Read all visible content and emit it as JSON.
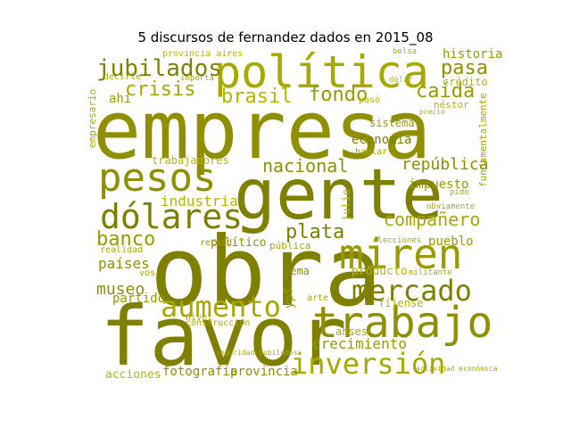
{
  "title": "5 discursos de fernandez dados en 2015_08",
  "words": {
    "empresa": "empresa",
    "obra": "obra",
    "favor": "favor",
    "gente": "gente",
    "politica": "política",
    "pesos": "pesos",
    "dolares": "dólares",
    "trabajo": "trabajo",
    "miren": "miren",
    "mercado": "mercado",
    "inversion": "inversión",
    "aumento": "aumento",
    "jubilados": "jubilados",
    "crisis": "crisis",
    "brasil": "brasil",
    "fondo": "fondo",
    "pasa": "pasa",
    "caida": "caída",
    "banco": "banco",
    "plata": "plata",
    "companero": "compañero",
    "nacional": "nacional",
    "republica": "república",
    "industria": "industria",
    "paises": "países",
    "museo": "museo",
    "partido": "partido",
    "crecimiento": "crecimiento",
    "economia": "economía",
    "historia": "historia",
    "credito": "crédito",
    "impuesto": "impuesto",
    "pueblo": "pueblo",
    "trabajadores": "trabajadores",
    "acciones": "acciones",
    "fotografia": "fotografía",
    "provincia": "provincia",
    "politico": "político",
    "publica": "pública",
    "record": "record",
    "producto": "producto",
    "anses": "anses",
    "lema": "lema",
    "ypf": "ypf",
    "fijense": "fíjense",
    "sistema": "sistema",
    "julio": "julio",
    "empresario": "empresario",
    "fundamentalmente": "fundamentalmente",
    "nestor": "néstor",
    "provincia_aires": "provincia aires",
    "decirle": "decirle",
    "importa": "importa",
    "realidad": "realidad",
    "nivel": "nivel",
    "construccion": "construcción",
    "ahi": "ahí",
    "hablar": "hablar",
    "elecciones": "elecciones",
    "militante": "militante",
    "obviamente": "obviamente",
    "seguridad_jubilados": "seguridad jubilados",
    "actividad_economica": "actividad económica",
    "paso": "pasó",
    "bolsa": "bolsa",
    "arte": "arte",
    "dolar": "dólar",
    "precio": "precio",
    "vos": "vos",
    "pido": "pido"
  }
}
